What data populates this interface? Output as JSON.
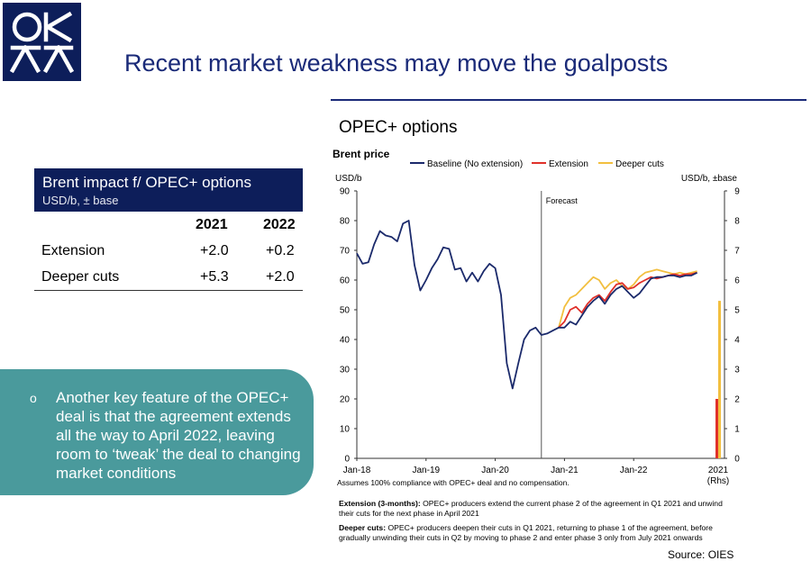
{
  "slide": {
    "title": "Recent market weakness may move the goalposts",
    "source": "Source: OIES"
  },
  "table": {
    "title": "Brent impact f/ OPEC+ options",
    "subtitle": "USD/b, ± base",
    "columns": [
      "2021",
      "2022"
    ],
    "rows": [
      {
        "label": "Extension",
        "values": [
          "+2.0",
          "+0.2"
        ]
      },
      {
        "label": "Deeper cuts",
        "values": [
          "+5.3",
          "+2.0"
        ]
      }
    ]
  },
  "note": {
    "bullet": "o",
    "text": "Another key feature of the OPEC+ deal is that the agreement extends all the way to April 2022, leaving room to ‘tweak’ the deal to changing market conditions"
  },
  "colors": {
    "navy": "#0d1e5a",
    "teal": "#4a9a9c",
    "baseline": "#1b2a6b",
    "extension": "#e0312a",
    "deeper_cuts": "#f2bf3f"
  },
  "chart_data": {
    "type": "line",
    "heading": "OPEC+ options",
    "title": "Brent price",
    "ylabel_left": "USD/b",
    "ylabel_right": "USD/b, ±base",
    "ylim": [
      0,
      90
    ],
    "ylim_right": [
      0,
      9
    ],
    "yticks": [
      0,
      10,
      20,
      30,
      40,
      50,
      60,
      70,
      80,
      90
    ],
    "yticks_right": [
      0,
      1,
      2,
      3,
      4,
      5,
      6,
      7,
      8,
      9
    ],
    "xticks": [
      "Jan-18",
      "Jan-19",
      "Jan-20",
      "Jan-21",
      "Jan-22"
    ],
    "bar_category": "2021",
    "bar_category_sub": "(Rhs)",
    "forecast_label": "Forecast",
    "note": "Assumes 100% compliance with OPEC+ deal and no compensation.",
    "legend_position": "top",
    "series": [
      {
        "name": "Baseline (No extension)",
        "color": "#1b2a6b",
        "x": [
          "2018-01",
          "2018-02",
          "2018-03",
          "2018-04",
          "2018-05",
          "2018-06",
          "2018-07",
          "2018-08",
          "2018-09",
          "2018-10",
          "2018-11",
          "2018-12",
          "2019-01",
          "2019-02",
          "2019-03",
          "2019-04",
          "2019-05",
          "2019-06",
          "2019-07",
          "2019-08",
          "2019-09",
          "2019-10",
          "2019-11",
          "2019-12",
          "2020-01",
          "2020-02",
          "2020-03",
          "2020-04",
          "2020-05",
          "2020-06",
          "2020-07",
          "2020-08",
          "2020-09",
          "2020-10",
          "2020-11",
          "2020-12",
          "2021-01",
          "2021-02",
          "2021-03",
          "2021-04",
          "2021-05",
          "2021-06",
          "2021-07",
          "2021-08",
          "2021-09",
          "2021-10",
          "2021-11",
          "2021-12",
          "2022-01",
          "2022-02",
          "2022-03",
          "2022-04",
          "2022-05",
          "2022-06",
          "2022-07",
          "2022-08",
          "2022-09",
          "2022-10",
          "2022-11",
          "2022-12"
        ],
        "y": [
          69,
          65.5,
          66,
          72,
          76.5,
          75,
          74.5,
          73,
          79,
          80,
          65,
          56.5,
          60,
          64,
          67,
          71,
          70.5,
          63.5,
          64,
          59.5,
          62.5,
          59.5,
          63,
          65.5,
          64,
          55,
          32,
          23.5,
          32,
          40,
          43,
          44,
          41.5,
          42,
          43,
          44,
          44,
          46,
          45,
          48,
          51,
          53,
          54.5,
          52,
          55,
          57,
          58,
          56,
          54,
          55.5,
          58,
          60.5,
          61,
          61,
          61.5,
          61.5,
          61,
          61.5,
          61.5,
          62.5
        ]
      },
      {
        "name": "Extension",
        "color": "#e0312a",
        "x": [
          "2020-12",
          "2021-01",
          "2021-02",
          "2021-03",
          "2021-04",
          "2021-05",
          "2021-06",
          "2021-07",
          "2021-08",
          "2021-09",
          "2021-10",
          "2021-11",
          "2021-12",
          "2022-01",
          "2022-02",
          "2022-03",
          "2022-04",
          "2022-05",
          "2022-06",
          "2022-07",
          "2022-08",
          "2022-09",
          "2022-10",
          "2022-11",
          "2022-12"
        ],
        "y": [
          44,
          46,
          50,
          51,
          49,
          52,
          54,
          55,
          53,
          56,
          58.5,
          59,
          57,
          57.5,
          59,
          60,
          61,
          60.5,
          61,
          61.5,
          62,
          61.5,
          62,
          62,
          62.5
        ]
      },
      {
        "name": "Deeper cuts",
        "color": "#f2bf3f",
        "x": [
          "2020-12",
          "2021-01",
          "2021-02",
          "2021-03",
          "2021-04",
          "2021-05",
          "2021-06",
          "2021-07",
          "2021-08",
          "2021-09",
          "2021-10",
          "2021-11",
          "2021-12",
          "2022-01",
          "2022-02",
          "2022-03",
          "2022-04",
          "2022-05",
          "2022-06",
          "2022-07",
          "2022-08",
          "2022-09",
          "2022-10",
          "2022-11",
          "2022-12"
        ],
        "y": [
          44,
          51,
          54,
          55,
          57,
          59,
          61,
          60,
          57,
          59,
          60,
          58,
          57,
          58.5,
          61,
          62.5,
          63,
          63.5,
          63,
          62.5,
          62,
          62.5,
          62,
          62.5,
          63
        ]
      }
    ],
    "bars_rhs": [
      {
        "name": "Extension",
        "value": 2.0
      },
      {
        "name": "Deeper cuts",
        "value": 5.3
      }
    ]
  },
  "footnotes": [
    {
      "label": "Extension (3-months):",
      "text": "OPEC+ producers extend the current phase 2 of the agreement in Q1 2021 and unwind their cuts for the next phase in April 2021"
    },
    {
      "label": "Deeper cuts:",
      "text": "OPEC+ producers deepen their cuts in Q1 2021, returning to phase 1 of the agreement, before gradually unwinding their cuts in Q2 by moving to phase 2 and enter phase 3 only from July 2021 onwards"
    }
  ]
}
